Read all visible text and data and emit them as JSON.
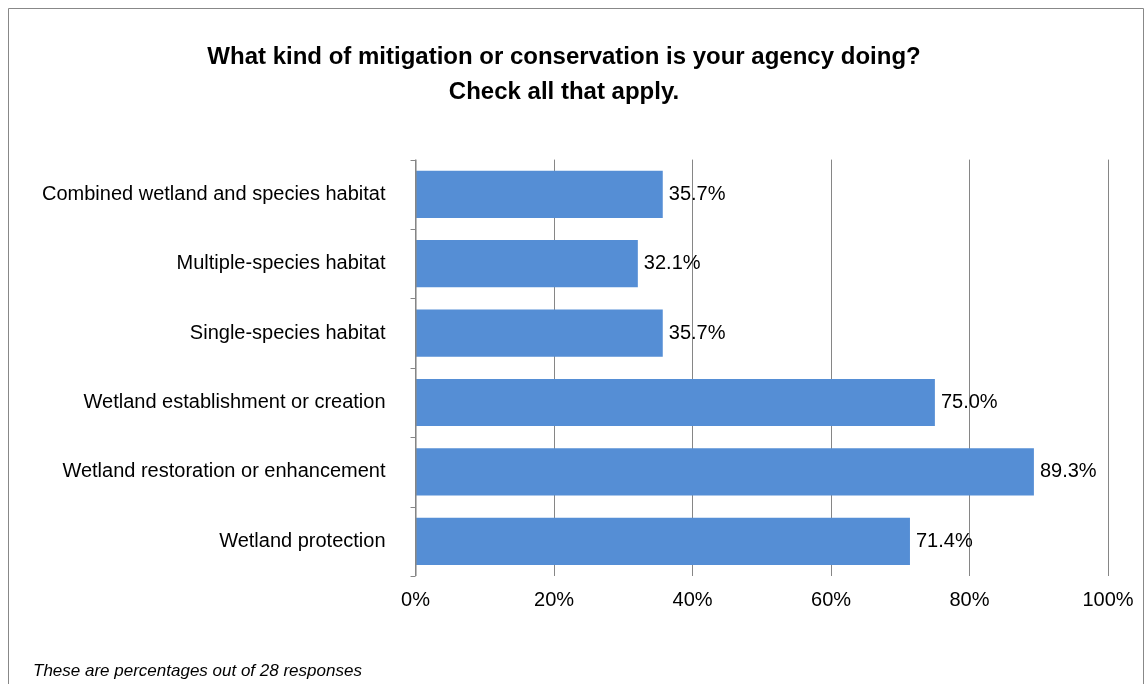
{
  "chart_data": {
    "type": "bar",
    "orientation": "horizontal",
    "title": "What kind of mitigation or conservation is your agency doing?\nCheck all that apply.",
    "categories": [
      "Combined wetland and species habitat",
      "Multiple-species habitat",
      "Single-species habitat",
      "Wetland establishment or creation",
      "Wetland restoration or enhancement",
      "Wetland protection"
    ],
    "values": [
      35.7,
      32.1,
      35.7,
      75.0,
      89.3,
      71.4
    ],
    "value_labels": [
      "35.7%",
      "32.1%",
      "35.7%",
      "75.0%",
      "89.3%",
      "71.4%"
    ],
    "color": "#558ed5",
    "xlim": [
      0,
      100
    ],
    "xticks": [
      {
        "value": 0,
        "label": "0%"
      },
      {
        "value": 20,
        "label": "20%"
      },
      {
        "value": 40,
        "label": "40%"
      },
      {
        "value": 60,
        "label": "60%"
      },
      {
        "value": 80,
        "label": "80%"
      },
      {
        "value": 100,
        "label": "100%"
      }
    ],
    "grid": "x",
    "legend": false,
    "annotations": [
      "These are percentages out of 28 responses"
    ]
  }
}
